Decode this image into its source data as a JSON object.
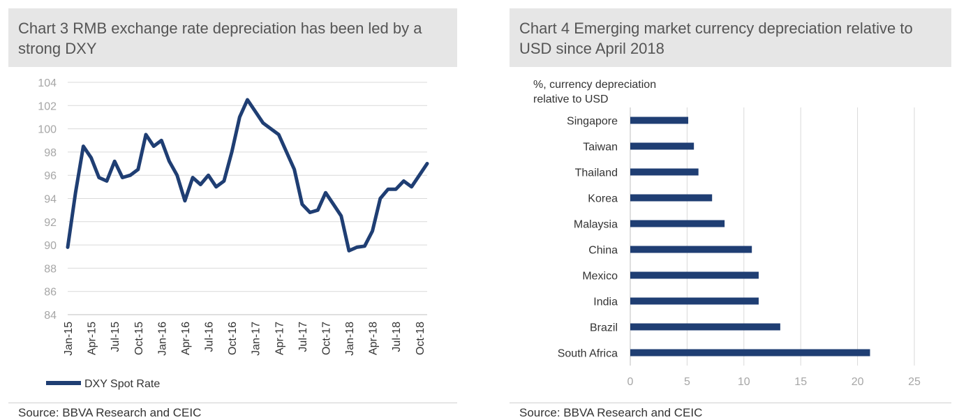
{
  "charts": [
    {
      "title": "Chart 3 RMB exchange rate depreciation has been led by a strong DXY",
      "source": "Source: BBVA Research and CEIC",
      "legend": "DXY Spot Rate"
    },
    {
      "title": "Chart 4 Emerging market currency depreciation relative to USD since April 2018",
      "source": "Source: BBVA Research and CEIC",
      "ylabel_line1": "%, currency depreciation",
      "ylabel_line2": "relative to USD"
    }
  ],
  "chart_data": [
    {
      "type": "line",
      "title": "Chart 3 RMB exchange rate depreciation has been led by a strong DXY",
      "xlabel": "",
      "ylabel": "",
      "ylim": [
        84,
        104
      ],
      "yticks": [
        84,
        86,
        88,
        90,
        92,
        94,
        96,
        98,
        100,
        102,
        104
      ],
      "xticks": [
        "Jan-15",
        "Apr-15",
        "Jul-15",
        "Oct-15",
        "Jan-16",
        "Apr-16",
        "Jul-16",
        "Oct-16",
        "Jan-17",
        "Apr-17",
        "Jul-17",
        "Oct-17",
        "Jan-18",
        "Apr-18",
        "Jul-18",
        "Oct-18"
      ],
      "grid": true,
      "legend_position": "bottom-left",
      "color": "#1f3e73",
      "series": [
        {
          "name": "DXY Spot Rate",
          "points": [
            [
              "Jan-15",
              89.8
            ],
            [
              "Feb-15",
              94.5
            ],
            [
              "Mar-15",
              98.5
            ],
            [
              "Apr-15",
              97.5
            ],
            [
              "May-15",
              95.8
            ],
            [
              "Jun-15",
              95.5
            ],
            [
              "Jul-15",
              97.2
            ],
            [
              "Aug-15",
              95.8
            ],
            [
              "Sep-15",
              96.0
            ],
            [
              "Oct-15",
              96.5
            ],
            [
              "Nov-15",
              99.5
            ],
            [
              "Dec-15",
              98.5
            ],
            [
              "Jan-16",
              99.0
            ],
            [
              "Feb-16",
              97.2
            ],
            [
              "Mar-16",
              96.0
            ],
            [
              "Apr-16",
              93.8
            ],
            [
              "May-16",
              95.8
            ],
            [
              "Jun-16",
              95.2
            ],
            [
              "Jul-16",
              96.0
            ],
            [
              "Aug-16",
              95.0
            ],
            [
              "Sep-16",
              95.5
            ],
            [
              "Oct-16",
              98.0
            ],
            [
              "Nov-16",
              101.0
            ],
            [
              "Dec-16",
              102.5
            ],
            [
              "Jan-17",
              101.5
            ],
            [
              "Feb-17",
              100.5
            ],
            [
              "Mar-17",
              100.0
            ],
            [
              "Apr-17",
              99.5
            ],
            [
              "May-17",
              98.0
            ],
            [
              "Jun-17",
              96.5
            ],
            [
              "Jul-17",
              93.5
            ],
            [
              "Aug-17",
              92.8
            ],
            [
              "Sep-17",
              93.0
            ],
            [
              "Oct-17",
              94.5
            ],
            [
              "Nov-17",
              93.5
            ],
            [
              "Dec-17",
              92.5
            ],
            [
              "Jan-18",
              89.5
            ],
            [
              "Feb-18",
              89.8
            ],
            [
              "Mar-18",
              89.9
            ],
            [
              "Apr-18",
              91.2
            ],
            [
              "May-18",
              94.0
            ],
            [
              "Jun-18",
              94.8
            ],
            [
              "Jul-18",
              94.8
            ],
            [
              "Aug-18",
              95.5
            ],
            [
              "Sep-18",
              95.0
            ],
            [
              "Oct-18",
              96.0
            ],
            [
              "Nov-18",
              97.0
            ]
          ]
        }
      ]
    },
    {
      "type": "bar",
      "orientation": "horizontal",
      "title": "Chart 4 Emerging market currency depreciation relative to USD since April 2018",
      "ylabel": "%, currency depreciation relative to USD",
      "xlim": [
        0,
        25
      ],
      "xticks": [
        0,
        5,
        10,
        15,
        20,
        25
      ],
      "grid": true,
      "color": "#1f3e73",
      "categories": [
        "Singapore",
        "Taiwan",
        "Thailand",
        "Korea",
        "Malaysia",
        "China",
        "Mexico",
        "India",
        "Brazil",
        "South Africa"
      ],
      "values": [
        5.1,
        5.6,
        6.0,
        7.2,
        8.3,
        10.7,
        11.3,
        11.3,
        13.2,
        21.1
      ]
    }
  ]
}
